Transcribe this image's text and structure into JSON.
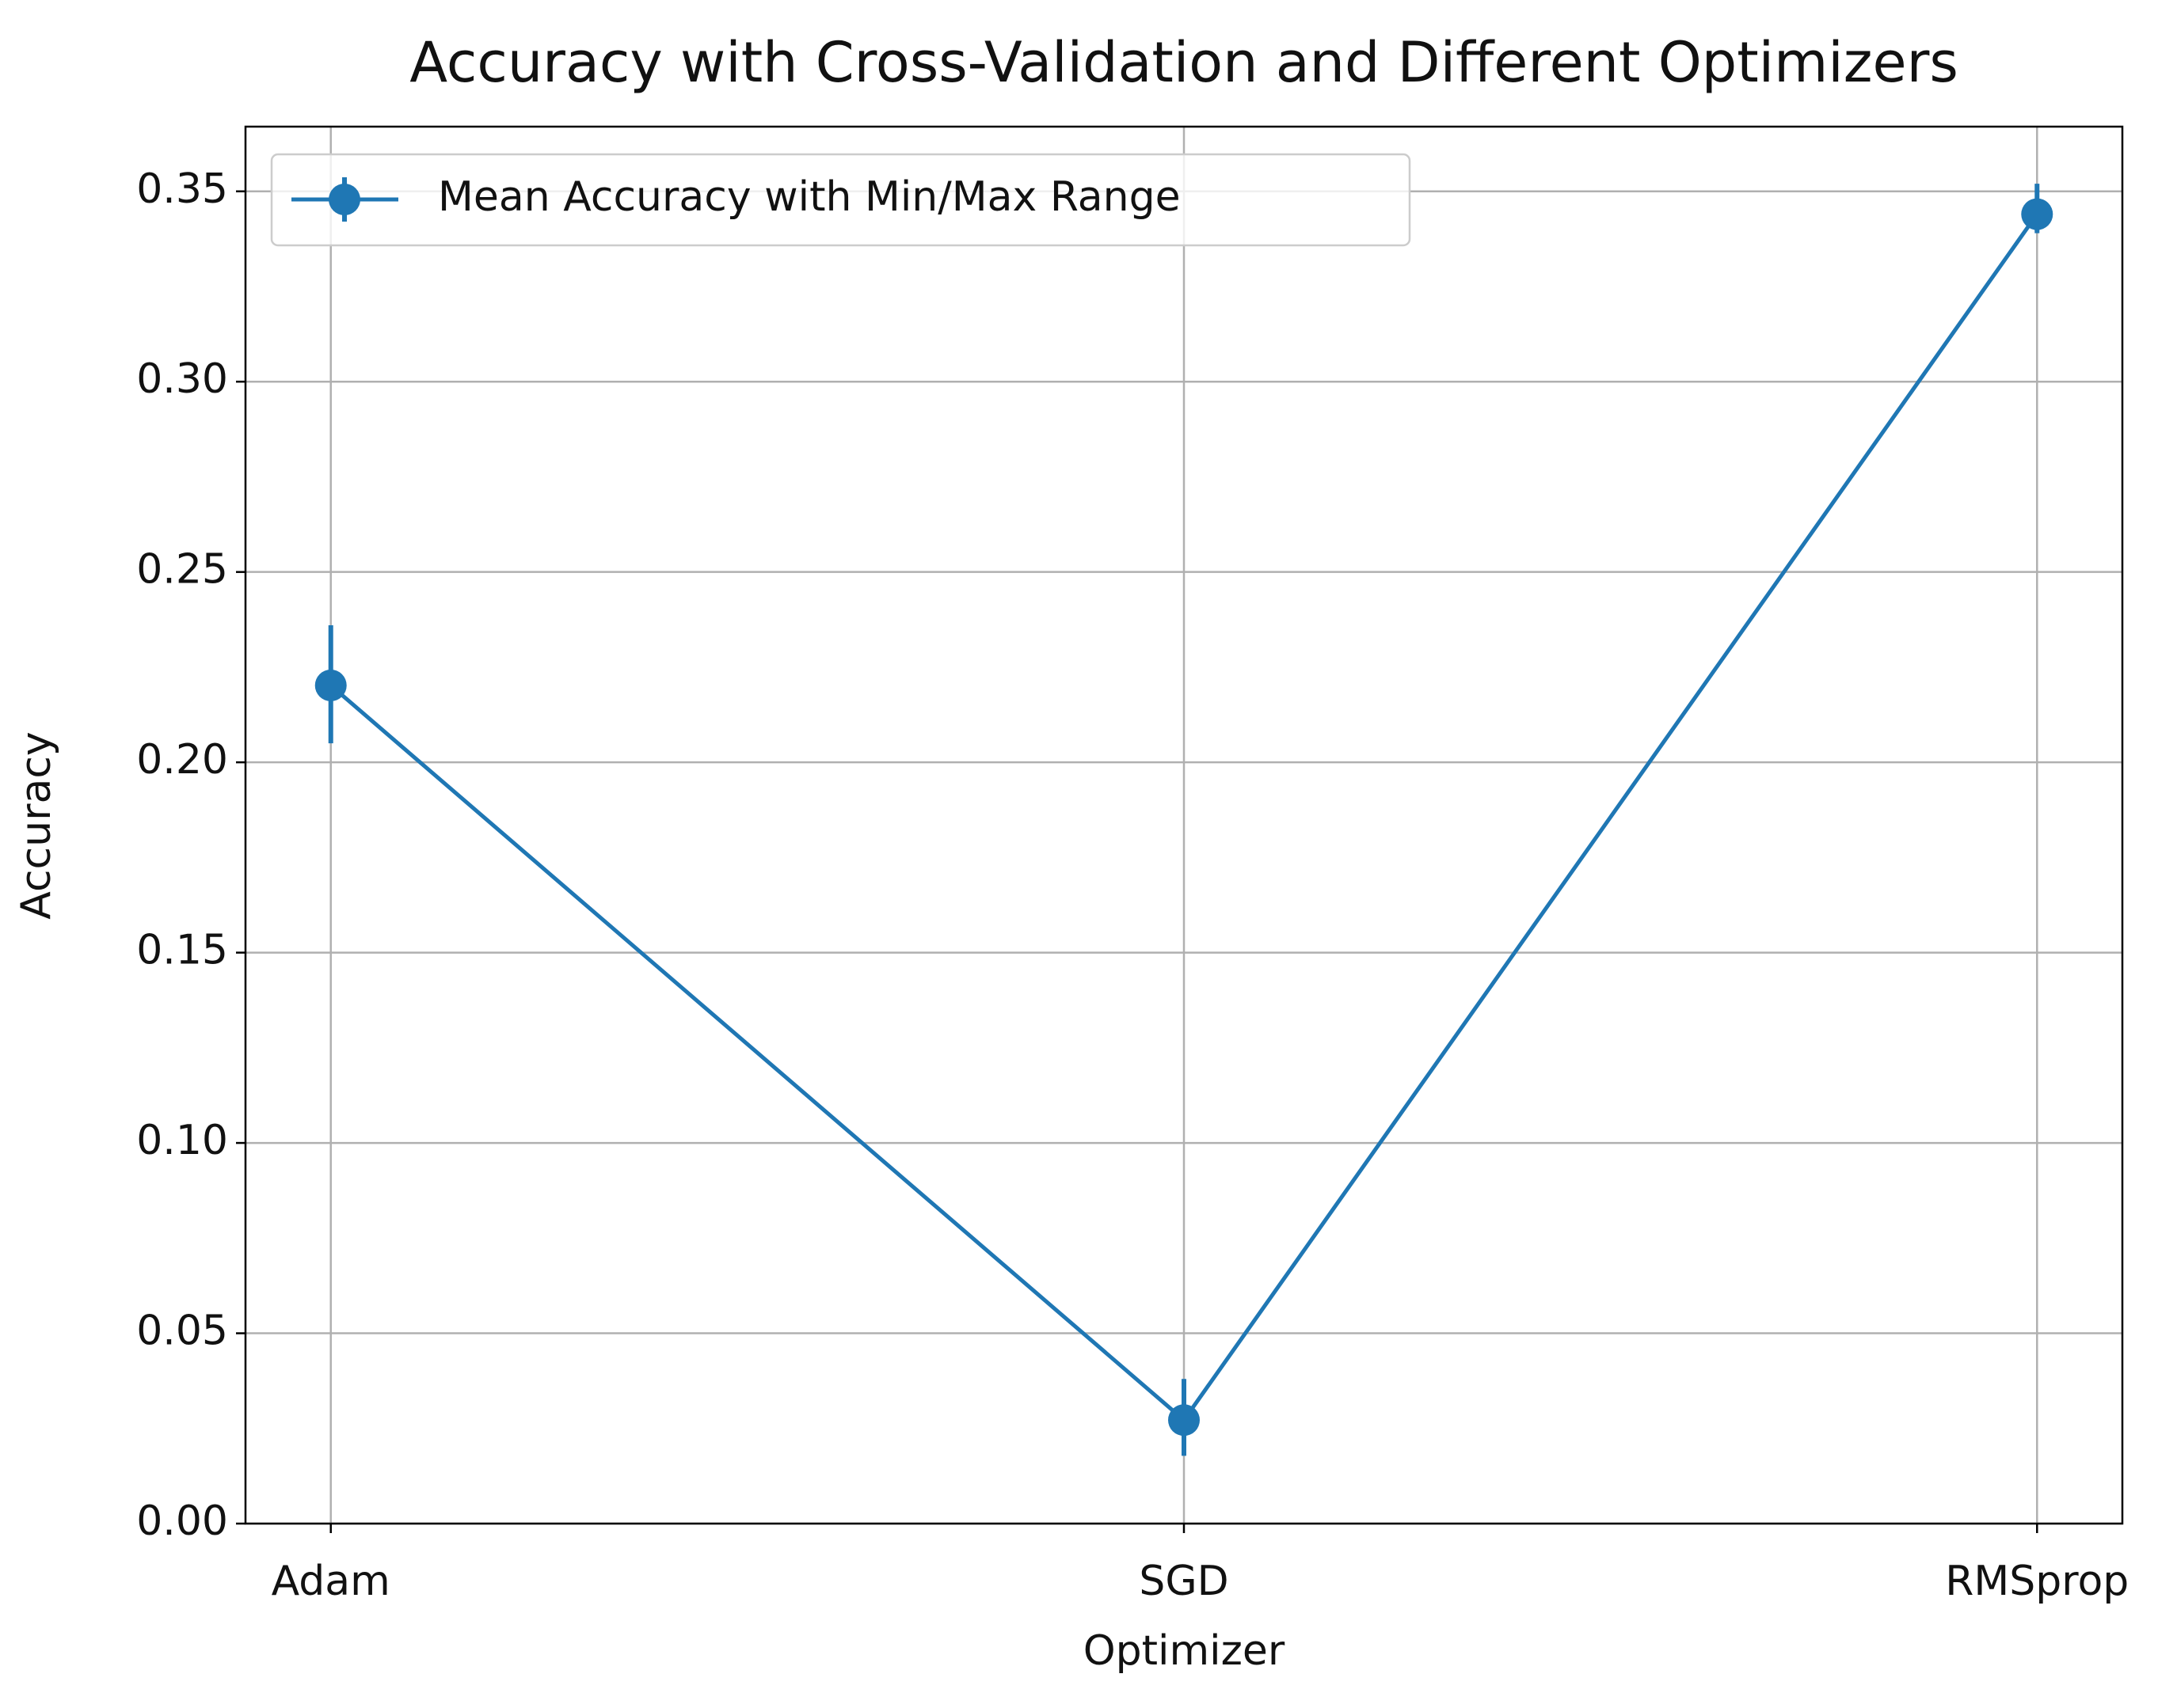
{
  "chart_data": {
    "type": "line",
    "title": "Accuracy with Cross-Validation and Different Optimizers",
    "x_label": "Optimizer",
    "y_label": "Accuracy",
    "categories": [
      "Adam",
      "SGD",
      "RMSprop"
    ],
    "series": [
      {
        "name": "Mean Accuracy with Min/Max Range",
        "color": "#1f77b4",
        "values": [
          0.2202,
          0.0272,
          0.344
        ],
        "min": [
          0.205,
          0.0178,
          0.339
        ],
        "max": [
          0.236,
          0.038,
          0.352
        ]
      }
    ],
    "ylim": [
      0,
      0.367
    ],
    "yticks": [
      {
        "value": 0,
        "label": "0.00"
      },
      0.05,
      {
        "value": 0.1,
        "label": "0.10"
      },
      0.15,
      {
        "value": 0.2,
        "label": "0.20"
      },
      0.25,
      {
        "value": 0.3,
        "label": "0.30"
      },
      0.35
    ],
    "grid": true,
    "legend": "upper left"
  }
}
